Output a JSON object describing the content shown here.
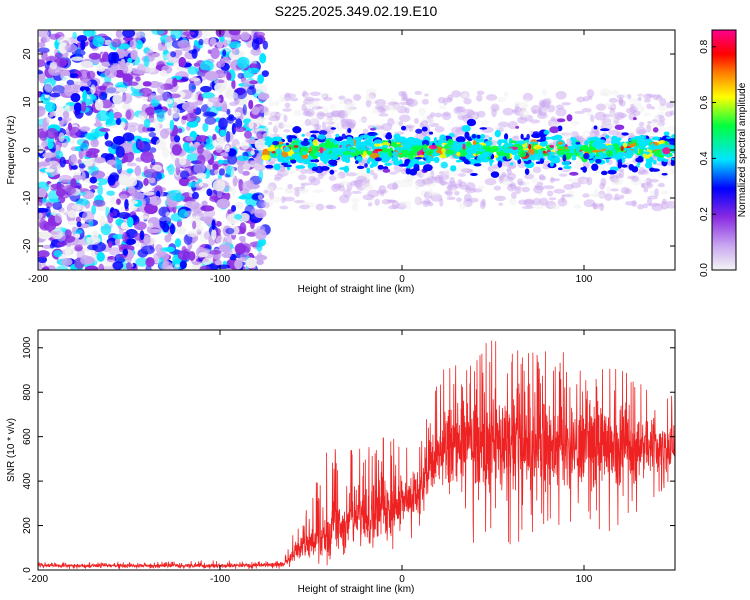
{
  "title": "S225.2025.349.02.19.E10",
  "chart_data": [
    {
      "type": "heatmap",
      "title": "S225.2025.349.02.19.E10",
      "xlabel": "Height of straight line (km)",
      "ylabel": "Frequency (Hz)",
      "xlim": [
        -200,
        150
      ],
      "ylim": [
        -25,
        25
      ],
      "xticks": [
        -200,
        -100,
        0,
        100
      ],
      "yticks": [
        -20,
        -10,
        0,
        10,
        20
      ],
      "colorbar": {
        "label": "Normalized spectral amplitude",
        "range": [
          0.0,
          0.86
        ],
        "ticks": [
          0.0,
          0.2,
          0.4,
          0.6,
          0.8
        ],
        "tick_labels": [
          "0.0",
          "0.2",
          "0.4",
          "0.6",
          "0.8"
        ],
        "colors": [
          "#f0f0f0",
          "#c9a8f0",
          "#8a2be2",
          "#0000ff",
          "#00e5ff",
          "#00ff40",
          "#ffff00",
          "#ff8000",
          "#ff0000",
          "#ff0090"
        ]
      },
      "regions": [
        {
          "x_range": [
            -200,
            -75
          ],
          "freq_range": [
            -25,
            25
          ],
          "description_level": "noise",
          "amplitude_range": [
            0.0,
            0.15
          ]
        },
        {
          "x_range": [
            -75,
            150
          ],
          "freq_range": [
            -8,
            8
          ],
          "description_level": "signal band",
          "center_freq": 0,
          "amplitude_range": [
            0.0,
            0.86
          ]
        }
      ]
    },
    {
      "type": "line",
      "xlabel": "Height of straight line (km)",
      "ylabel": "SNR (10 * v/v)",
      "xlim": [
        -200,
        150
      ],
      "ylim": [
        0,
        1080
      ],
      "xticks": [
        -200,
        -100,
        0,
        100
      ],
      "yticks": [
        0,
        200,
        400,
        600,
        800,
        1000
      ],
      "color": "#ee2222",
      "series": [
        {
          "name": "SNR",
          "x": [
            -200,
            -180,
            -160,
            -140,
            -120,
            -100,
            -80,
            -65,
            -60,
            -50,
            -40,
            -30,
            -20,
            -10,
            0,
            10,
            20,
            30,
            40,
            50,
            60,
            70,
            80,
            90,
            100,
            110,
            120,
            130,
            140,
            150
          ],
          "values": [
            20,
            20,
            20,
            20,
            20,
            20,
            22,
            25,
            80,
            130,
            180,
            230,
            260,
            290,
            320,
            360,
            520,
            560,
            560,
            570,
            570,
            560,
            560,
            560,
            560,
            560,
            550,
            550,
            560,
            570
          ],
          "envelope_max": [
            35,
            35,
            35,
            35,
            40,
            45,
            40,
            45,
            200,
            330,
            580,
            520,
            680,
            650,
            600,
            590,
            900,
            950,
            1000,
            1080,
            1000,
            980,
            1000,
            980,
            900,
            920,
            920,
            850,
            800,
            800
          ],
          "envelope_min": [
            5,
            5,
            5,
            5,
            5,
            5,
            5,
            5,
            10,
            20,
            20,
            40,
            40,
            60,
            120,
            150,
            200,
            120,
            100,
            60,
            100,
            150,
            150,
            100,
            150,
            150,
            200,
            200,
            250,
            300
          ]
        }
      ]
    }
  ]
}
